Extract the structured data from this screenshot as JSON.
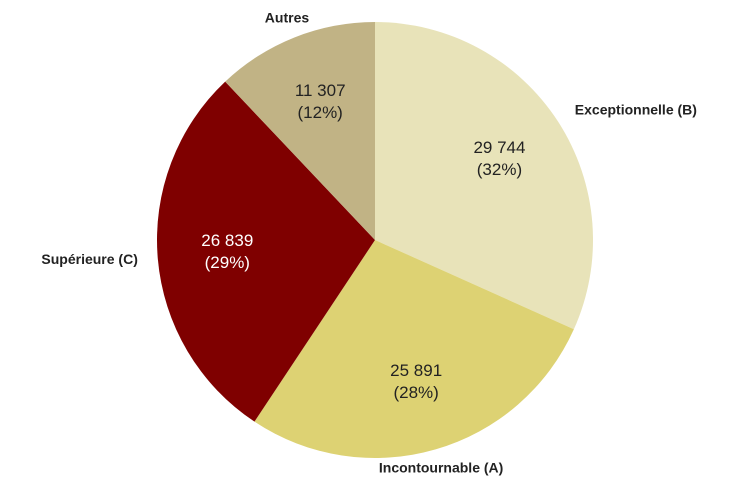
{
  "chart_data": {
    "type": "pie",
    "categories": [
      "Exceptionnelle (B)",
      "Incontournable (A)",
      "Supérieure  (C)",
      "Autres"
    ],
    "values": [
      29744,
      25891,
      26839,
      11307
    ],
    "value_labels": [
      "29 744",
      "25 891",
      "26 839",
      "11 307"
    ],
    "percent_labels": [
      "(32%)",
      "(28%)",
      "(29%)",
      "(12%)"
    ],
    "colors": [
      "#e8e3b9",
      "#ddd273",
      "#7f0000",
      "#c1b385"
    ]
  }
}
